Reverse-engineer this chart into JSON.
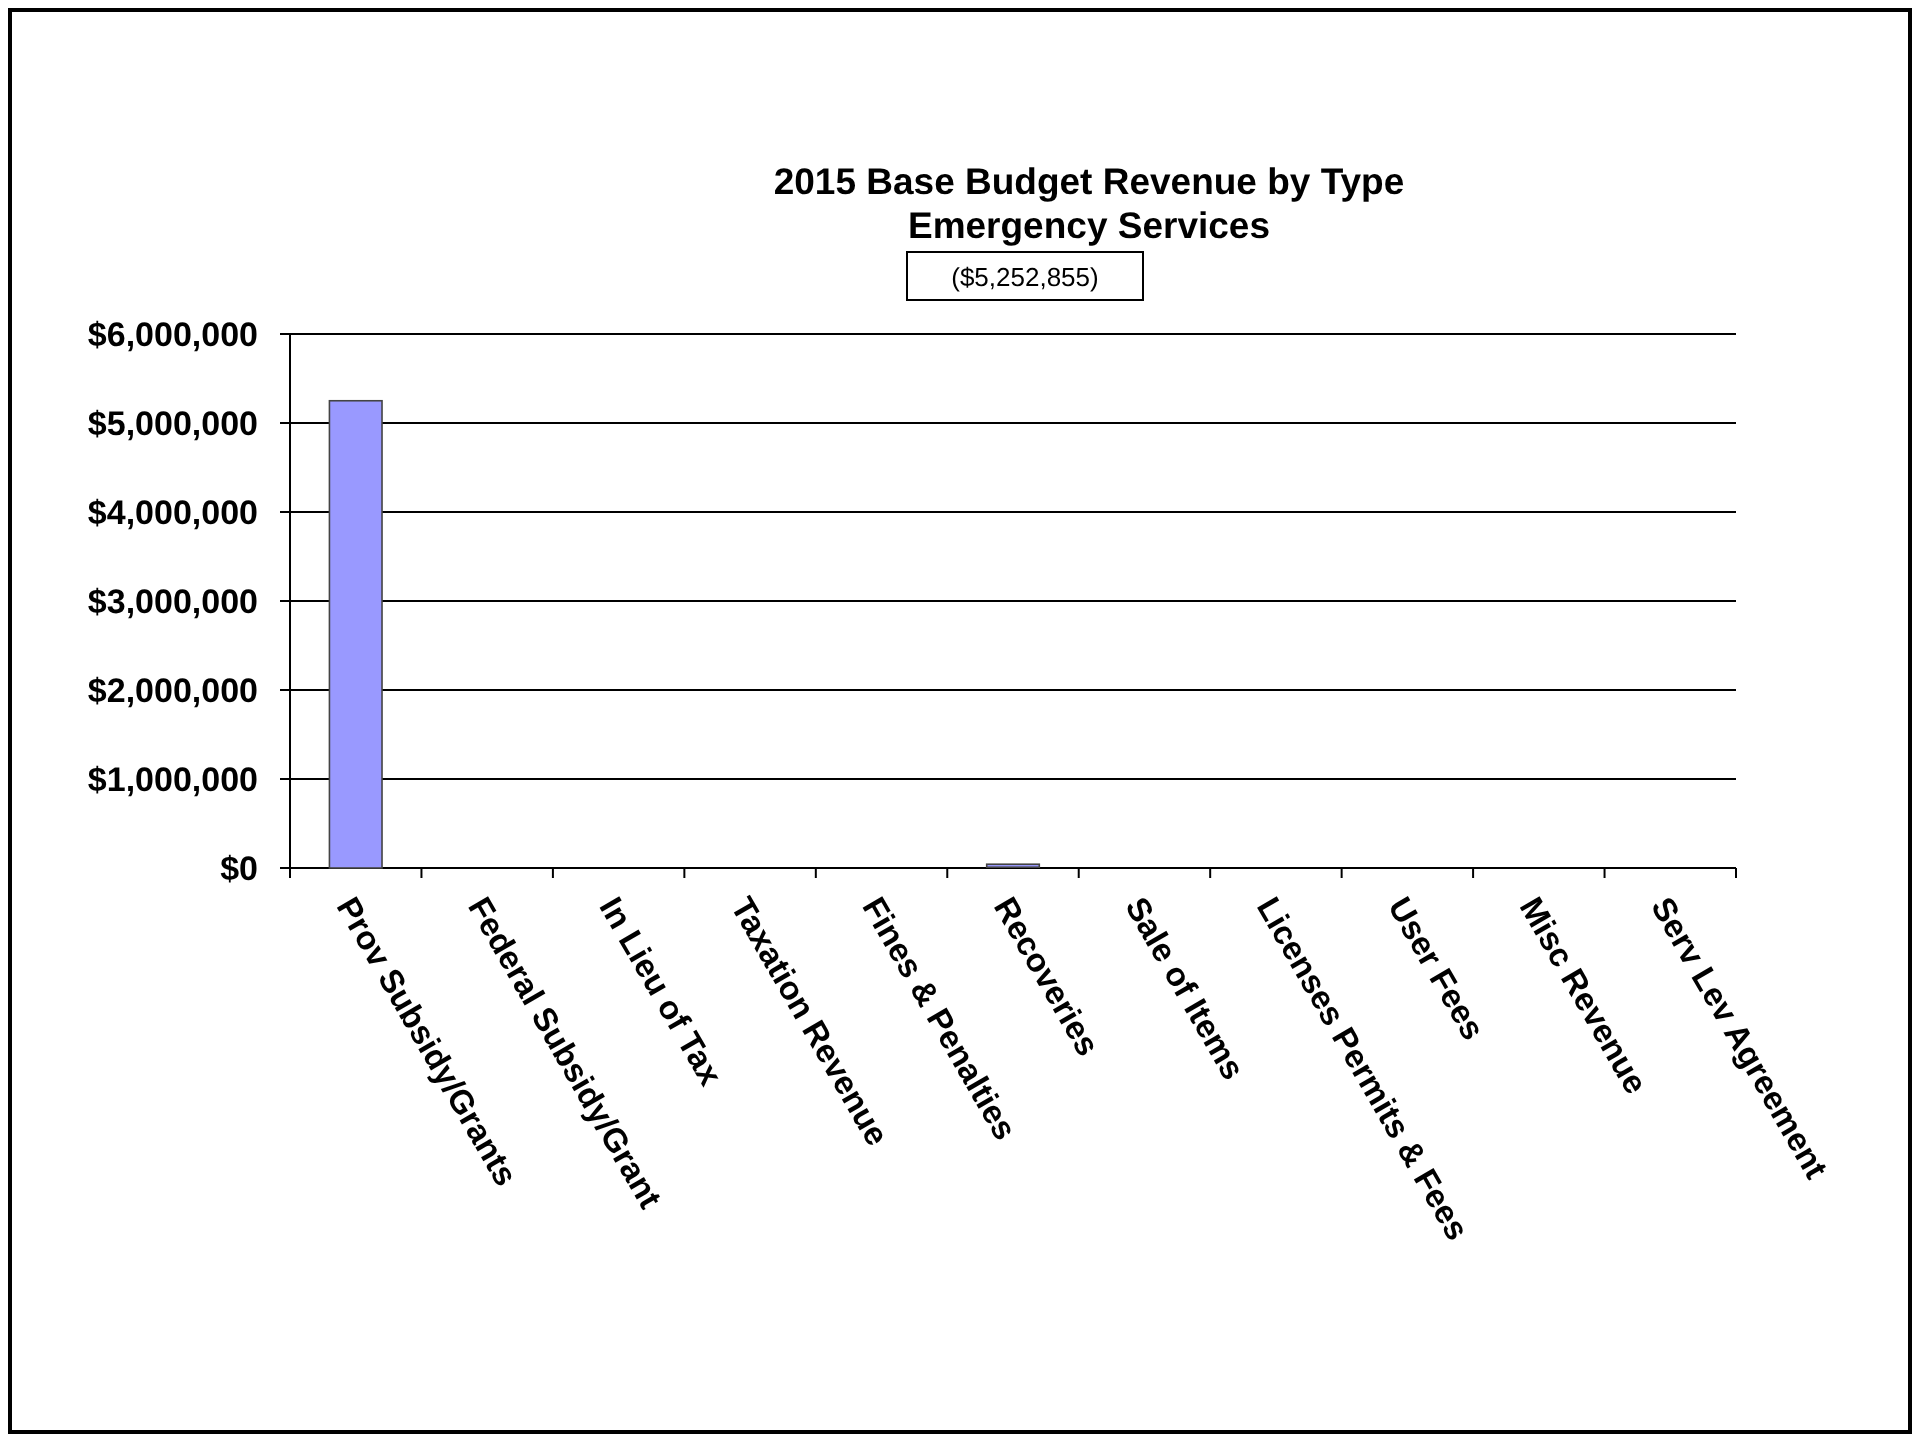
{
  "chart_data": {
    "type": "bar",
    "title": "2015 Base Budget Revenue by Type\nEmergency Services",
    "subtitle": "($5,252,855)",
    "categories": [
      "Prov Subsidy/Grants",
      "Federal Subsidy/Grant",
      "In Lieu of Tax",
      "Taxation Revenue",
      "Fines & Penalties",
      "Recoveries",
      "Sale of Items",
      "Licenses Permits & Fees",
      "User Fees",
      "Misc Revenue",
      "Serv Lev Agreement"
    ],
    "values": [
      5250000,
      0,
      0,
      0,
      0,
      20000,
      0,
      0,
      0,
      0,
      0
    ],
    "color": "#9999ff",
    "ylim": [
      0,
      6000000
    ],
    "yticks": [
      {
        "value": 0,
        "label": "$0"
      },
      {
        "value": 1000000,
        "label": "$1,000,000"
      },
      {
        "value": 2000000,
        "label": "$2,000,000"
      },
      {
        "value": 3000000,
        "label": "$3,000,000"
      },
      {
        "value": 4000000,
        "label": "$4,000,000"
      },
      {
        "value": 5000000,
        "label": "$5,000,000"
      },
      {
        "value": 6000000,
        "label": "$6,000,000"
      }
    ],
    "grid": "y"
  }
}
